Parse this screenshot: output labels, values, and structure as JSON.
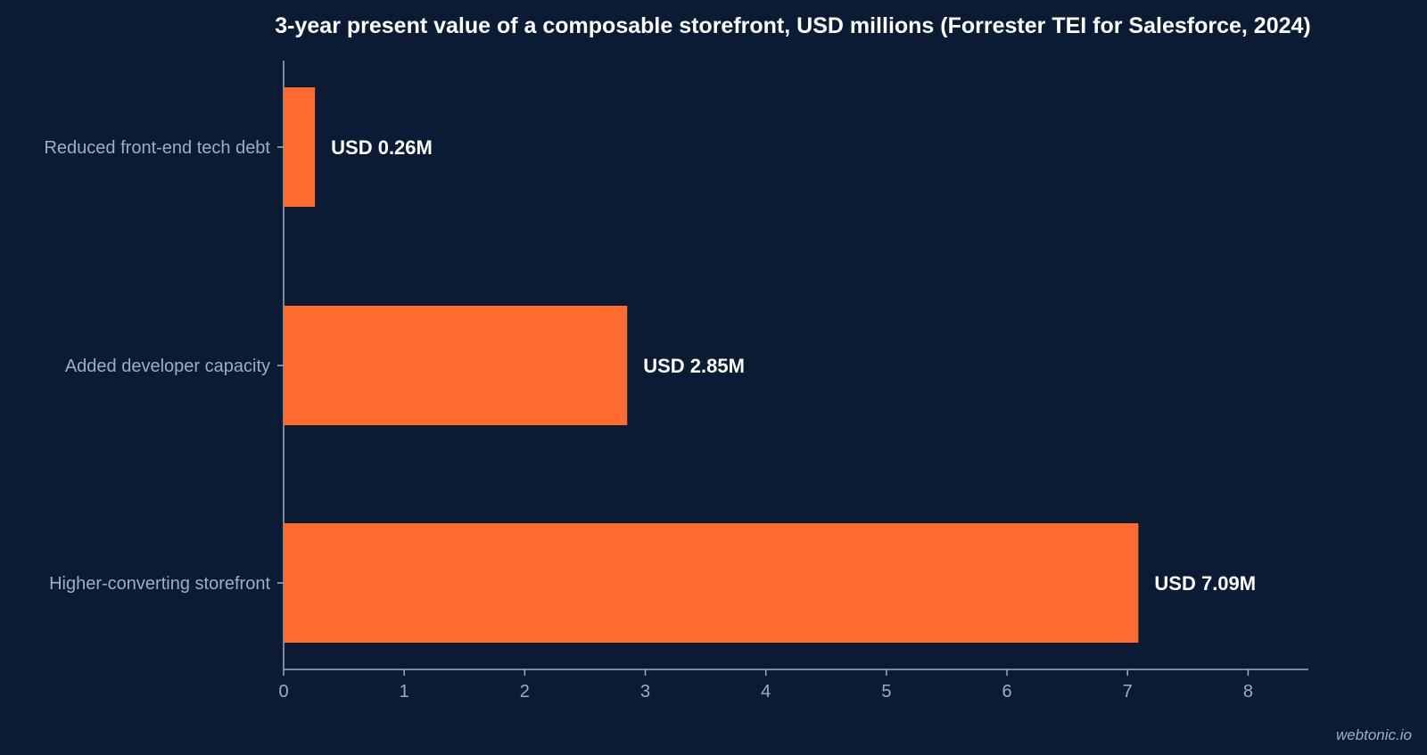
{
  "colors": {
    "background": "#0b1b34",
    "bar": "#ff6b2f",
    "axis": "#9eadc2",
    "text": "#ffffff"
  },
  "credit": "webtonic.io",
  "chart_data": {
    "type": "bar",
    "orientation": "horizontal",
    "title": "3-year present value of a composable storefront, USD millions (Forrester TEI for Salesforce, 2024)",
    "xlabel": "",
    "ylabel": "",
    "categories": [
      "Reduced front-end tech debt",
      "Added developer capacity",
      "Higher-converting storefront"
    ],
    "values": [
      0.26,
      2.85,
      7.09
    ],
    "data_labels": [
      "USD 0.26M",
      "USD 2.85M",
      "USD 7.09M"
    ],
    "xlim": [
      0,
      8.5
    ],
    "xticks": [
      0,
      1,
      2,
      3,
      4,
      5,
      6,
      7,
      8
    ],
    "grid": false,
    "legend": "none"
  }
}
